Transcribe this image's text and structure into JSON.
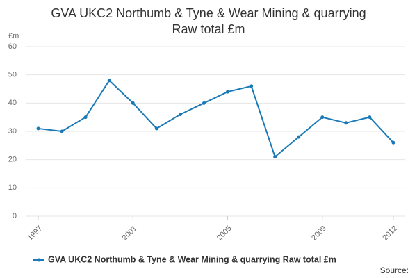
{
  "chart_data": {
    "type": "line",
    "title": "GVA UKC2 Northumb & Tyne & Wear Mining & quarrying Raw total £m",
    "y_axis_label": "£m",
    "source": "Source:",
    "x": [
      1997,
      1998,
      1999,
      2000,
      2001,
      2002,
      2003,
      2004,
      2005,
      2006,
      2007,
      2008,
      2009,
      2010,
      2011,
      2012
    ],
    "series": [
      {
        "name": "GVA UKC2 Northumb & Tyne & Wear Mining & quarrying Raw total £m",
        "color": "#1a7ab8",
        "values": [
          31,
          30,
          35,
          48,
          40,
          31,
          36,
          40,
          44,
          46,
          21,
          28,
          35,
          33,
          35,
          26
        ]
      }
    ],
    "xlim": [
      1996.5,
      2012.5
    ],
    "xticks": [
      1997,
      2001,
      2005,
      2009,
      2012
    ],
    "ylim": [
      0,
      60
    ],
    "yticks": [
      0,
      10,
      20,
      30,
      40,
      50,
      60
    ],
    "grid": true
  }
}
